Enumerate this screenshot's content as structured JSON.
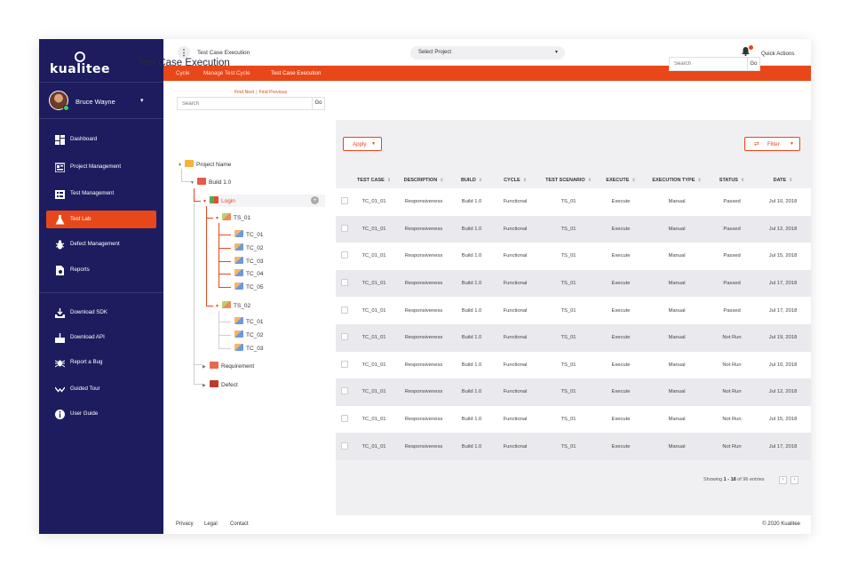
{
  "app": {
    "logo_text": "kualitee"
  },
  "user": {
    "name": "Bruce Wayne",
    "caret": "▾"
  },
  "sidebar": {
    "items": [
      {
        "label": "Dashboard",
        "icon": "dashboard-icon"
      },
      {
        "label": "Project Management",
        "icon": "project-management-icon"
      },
      {
        "label": "Test Management",
        "icon": "test-management-icon"
      },
      {
        "label": "Test Lab",
        "icon": "flask-icon",
        "active": true
      },
      {
        "label": "Defect Management",
        "icon": "bug-icon"
      },
      {
        "label": "Reports",
        "icon": "report-icon"
      }
    ],
    "secondary": [
      {
        "label": "Download SDK",
        "icon": "download-icon"
      },
      {
        "label": "Download API",
        "icon": "download-tray-icon"
      },
      {
        "label": "Report a Bug",
        "icon": "bug-report-icon"
      },
      {
        "label": "Guided Tour",
        "icon": "tour-icon"
      },
      {
        "label": "User Guide",
        "icon": "info-icon"
      }
    ]
  },
  "topbar": {
    "title": "Test Case Execution",
    "project_select": "Select Project",
    "quick_actions": "Quick Actions"
  },
  "breadcrumb": [
    "Cycle",
    "Manage Test Cycle",
    "Test Case Execution"
  ],
  "page": {
    "title": "Test Case Execution",
    "search_placeholder": "Search",
    "go": "Go"
  },
  "tree": {
    "find_next": "Find Next",
    "find_previous": "Find Previous",
    "search_placeholder": "Search",
    "go": "Go",
    "nodes": {
      "root": "Project Name",
      "build": "Build 1.0",
      "login": "Login",
      "ts1": "TS_01",
      "ts1_cases": [
        "TC_01",
        "TC_02",
        "TC_03",
        "TC_04",
        "TC_05"
      ],
      "ts2": "TS_02",
      "ts2_cases": [
        "TC_01",
        "TC_02",
        "TC_03"
      ],
      "requirement": "Requirement",
      "defect": "Defect"
    }
  },
  "toolbar": {
    "apply": "Apply",
    "filter": "Filter"
  },
  "table": {
    "columns": [
      "TEST CASE",
      "DESCRIPTION",
      "BUILD",
      "CYCLE",
      "TEST SCENARIO",
      "EXECUTE",
      "EXECUTION TYPE",
      "STATUS",
      "DATE"
    ],
    "rows": [
      [
        "TC_01_01",
        "Responsiveness",
        "Build 1.0",
        "Functional",
        "TS_01",
        "Execute",
        "Manual",
        "Passed",
        "Jul 10, 2018"
      ],
      [
        "TC_01_01",
        "Responsiveness",
        "Build 1.0",
        "Functional",
        "TS_01",
        "Execute",
        "Manual",
        "Passed",
        "Jul 12, 2018"
      ],
      [
        "TC_01_01",
        "Responsiveness",
        "Build 1.0",
        "Functional",
        "TS_01",
        "Execute",
        "Manual",
        "Passed",
        "Jul 15, 2018"
      ],
      [
        "TC_01_01",
        "Responsiveness",
        "Build 1.0",
        "Functional",
        "TS_01",
        "Execute",
        "Manual",
        "Passed",
        "Jul 17, 2018"
      ],
      [
        "TC_01_01",
        "Responsiveness",
        "Build 1.0",
        "Functional",
        "TS_01",
        "Execute",
        "Manual",
        "Passed",
        "Jul 17, 2018"
      ],
      [
        "TC_01_01",
        "Responsiveness",
        "Build 1.0",
        "Functional",
        "TS_01",
        "Execute",
        "Manual",
        "Not Run",
        "Jul 19, 2018"
      ],
      [
        "TC_01_01",
        "Responsiveness",
        "Build 1.0",
        "Functional",
        "TS_01",
        "Execute",
        "Manual",
        "Not Run",
        "Jul 10, 2018"
      ],
      [
        "TC_01_01",
        "Responsiveness",
        "Build 1.0",
        "Functional",
        "TS_01",
        "Execute",
        "Manual",
        "Not Run",
        "Jul 12, 2018"
      ],
      [
        "TC_01_01",
        "Responsiveness",
        "Build 1.0",
        "Functional",
        "TS_01",
        "Execute",
        "Manual",
        "Not Run",
        "Jul 15, 2018"
      ],
      [
        "TC_01_01",
        "Responsiveness",
        "Build 1.0",
        "Functional",
        "TS_01",
        "Execute",
        "Manual",
        "Not Run",
        "Jul 17, 2018"
      ]
    ]
  },
  "pager": {
    "prefix": "Showing",
    "range": "1 - 18",
    "suffix": "of 96 entries",
    "prev": "‹",
    "next": "›"
  },
  "footer": {
    "links": [
      "Privacy",
      "Legal",
      "Contact"
    ],
    "copyright": "© 2020 Kualitee"
  },
  "colors": {
    "sidebar": "#1c1c5e",
    "accent": "#e8471a",
    "panel": "#f0f0f3"
  }
}
